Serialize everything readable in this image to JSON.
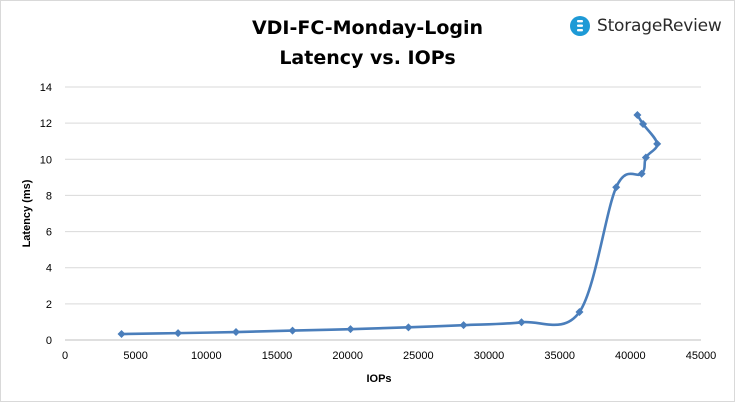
{
  "brand": {
    "name": "StorageReview",
    "logo_icon": "storagereview-logo-icon",
    "logo_color": "#1e9ad6"
  },
  "chart_data": {
    "type": "line",
    "title": "VDI-FC-Monday-Login",
    "subtitle": "Latency vs. IOPs",
    "xlabel": "IOPs",
    "ylabel": "Latency (ms)",
    "xlim": [
      0,
      45000
    ],
    "ylim": [
      0,
      14
    ],
    "x_ticks": [
      0,
      5000,
      10000,
      15000,
      20000,
      25000,
      30000,
      35000,
      40000,
      45000
    ],
    "y_ticks": [
      0,
      2,
      4,
      6,
      8,
      10,
      12,
      14
    ],
    "grid": {
      "horizontal": true,
      "vertical": false
    },
    "legend": "none",
    "line_color": "#4a7ebb",
    "series": [
      {
        "points": [
          [
            4000,
            0.33
          ],
          [
            8000,
            0.38
          ],
          [
            12100,
            0.44
          ],
          [
            16100,
            0.52
          ],
          [
            20200,
            0.6
          ],
          [
            24300,
            0.7
          ],
          [
            28200,
            0.82
          ],
          [
            32300,
            0.98
          ],
          [
            36400,
            1.55
          ],
          [
            39000,
            8.45
          ],
          [
            40800,
            9.2
          ],
          [
            41100,
            10.1
          ],
          [
            41900,
            10.85
          ],
          [
            40900,
            11.95
          ],
          [
            40500,
            12.45
          ]
        ]
      }
    ]
  }
}
